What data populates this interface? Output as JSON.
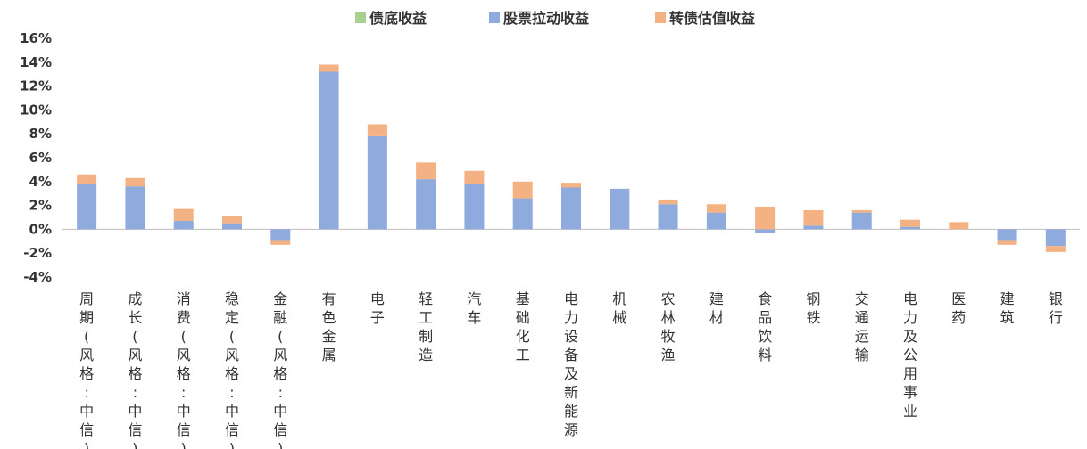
{
  "chart_data": {
    "type": "bar",
    "stacked": true,
    "legend_position": "top",
    "grid": false,
    "ylim": [
      -0.04,
      0.16
    ],
    "yticks": [
      "16%",
      "14%",
      "12%",
      "10%",
      "8%",
      "6%",
      "4%",
      "2%",
      "0%",
      "-2%",
      "-4%"
    ],
    "ytick_values": [
      0.16,
      0.14,
      0.12,
      0.1,
      0.08,
      0.06,
      0.04,
      0.02,
      0.0,
      -0.02,
      -0.04
    ],
    "categories": [
      "周期(风格:中信)",
      "成长(风格:中信)",
      "消费(风格:中信)",
      "稳定(风格:中信)",
      "金融(风格:中信)",
      "有色金属",
      "电子",
      "轻工制造",
      "汽车",
      "基础化工",
      "电力设备及新能源",
      "机械",
      "农林牧渔",
      "建材",
      "食品饮料",
      "钢铁",
      "交通运输",
      "电力及公用事业",
      "医药",
      "建筑",
      "银行"
    ],
    "series": [
      {
        "name": "债底收益",
        "color": "#a9d18e",
        "values": [
          0,
          0,
          0,
          0,
          0,
          0,
          0,
          0,
          0,
          0,
          0,
          0,
          0,
          0,
          0,
          0,
          0,
          0,
          0,
          0,
          0
        ]
      },
      {
        "name": "股票拉动收益",
        "color": "#8faadc",
        "values": [
          0.038,
          0.036,
          0.007,
          0.005,
          -0.009,
          0.132,
          0.078,
          0.042,
          0.038,
          0.026,
          0.035,
          0.034,
          0.021,
          0.014,
          -0.003,
          0.003,
          0.014,
          0.002,
          0.0,
          -0.009,
          -0.014
        ]
      },
      {
        "name": "转债估值收益",
        "color": "#f4b183",
        "values": [
          0.008,
          0.007,
          0.01,
          0.006,
          -0.004,
          0.006,
          0.01,
          0.014,
          0.011,
          0.014,
          0.004,
          0.0,
          0.004,
          0.007,
          0.019,
          0.013,
          0.002,
          0.006,
          0.006,
          -0.004,
          -0.005
        ]
      }
    ]
  }
}
